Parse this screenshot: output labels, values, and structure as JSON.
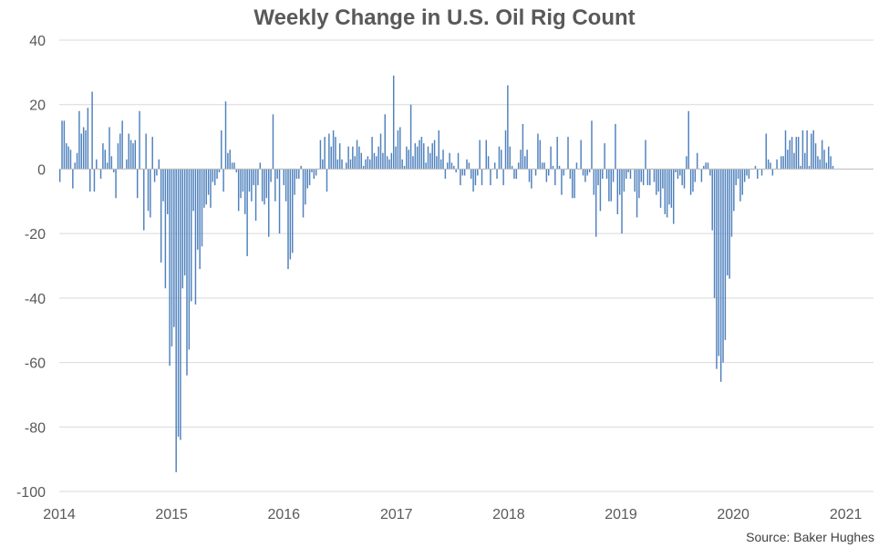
{
  "chart_data": {
    "type": "bar",
    "title": "Weekly Change in U.S. Oil Rig Count",
    "xlabel": "",
    "ylabel": "",
    "x_range": [
      "2014-01-01",
      "2021-04-01"
    ],
    "ylim": [
      -100,
      40
    ],
    "y_ticks": [
      40,
      20,
      0,
      -20,
      -40,
      -60,
      -80,
      -100
    ],
    "x_ticks": [
      "2014",
      "2015",
      "2016",
      "2017",
      "2018",
      "2019",
      "2020",
      "2021"
    ],
    "grid": "horizontal",
    "bar_color": "#4F81BD",
    "series": [
      {
        "start_date": "2014-01-03",
        "interval_days": 7,
        "values": [
          -4,
          15,
          15,
          8,
          7,
          6,
          -6,
          2,
          5,
          18,
          11,
          13,
          12,
          19,
          -7,
          24,
          -7,
          3,
          0,
          -3,
          8,
          6,
          2,
          13,
          4,
          -1,
          -9,
          8,
          11,
          15,
          0,
          3,
          11,
          9,
          8,
          9,
          -9,
          18,
          0,
          -19,
          11,
          -13,
          -15,
          10,
          -4,
          -2,
          3,
          -29,
          -10,
          -37,
          -14,
          -61,
          -55,
          -49,
          -94,
          -83,
          -84,
          -37,
          -33,
          -64,
          -56,
          -41,
          -13,
          -42,
          -25,
          -31,
          -24,
          -12,
          -11,
          -8,
          -12,
          -4,
          -5,
          -3,
          -1,
          12,
          -7,
          21,
          5,
          6,
          2,
          2,
          -1,
          -13,
          -9,
          -7,
          -14,
          -27,
          -7,
          -10,
          -5,
          -16,
          -5,
          2,
          -10,
          -11,
          -9,
          -21,
          -4,
          17,
          -10,
          -3,
          -20,
          0,
          -5,
          -10,
          -31,
          -28,
          -26,
          -8,
          -3,
          -3,
          1,
          -15,
          -11,
          -6,
          -5,
          -1,
          -3,
          -2,
          0,
          9,
          3,
          10,
          -7,
          11,
          7,
          12,
          10,
          3,
          8,
          3,
          0,
          2,
          7,
          3,
          7,
          4,
          9,
          7,
          5,
          1,
          3,
          4,
          3,
          10,
          5,
          4,
          7,
          11,
          5,
          17,
          4,
          3,
          5,
          29,
          7,
          12,
          13,
          3,
          1,
          7,
          6,
          20,
          4,
          8,
          7,
          9,
          10,
          8,
          2,
          7,
          5,
          8,
          9,
          4,
          12,
          3,
          6,
          -3,
          2,
          5,
          2,
          1,
          -1,
          5,
          -5,
          -2,
          -2,
          3,
          2,
          -3,
          -7,
          -5,
          -2,
          9,
          -5,
          0,
          9,
          4,
          -5,
          0,
          2,
          -3,
          7,
          6,
          -5,
          12,
          26,
          7,
          1,
          -3,
          -3,
          2,
          6,
          14,
          4,
          6,
          -4,
          -6,
          0,
          -2,
          11,
          9,
          2,
          2,
          -4,
          -2,
          7,
          1,
          -5,
          10,
          1,
          -8,
          -2,
          0,
          10,
          -3,
          -9,
          -9,
          2,
          0,
          9,
          -2,
          -4,
          -2,
          -1,
          15,
          -8,
          -21,
          -5,
          -13,
          -3,
          8,
          -3,
          -10,
          -10,
          -4,
          14,
          -14,
          -8,
          -20,
          -7,
          -3,
          -1,
          -3,
          0,
          -7,
          -15,
          -9,
          -4,
          -5,
          9,
          -5,
          -5,
          0,
          -4,
          -8,
          -7,
          -12,
          -6,
          -14,
          -15,
          -11,
          -12,
          -17,
          -1,
          -3,
          -2,
          -5,
          -6,
          4,
          18,
          -8,
          -7,
          -4,
          5,
          0,
          -4,
          1,
          2,
          2,
          -2,
          -19,
          -40,
          -62,
          -58,
          -66,
          -60,
          -53,
          -33,
          -34,
          -21,
          -13,
          -5,
          -3,
          -10,
          -8,
          -4,
          -2,
          -3,
          0,
          0,
          1,
          -3,
          0,
          -2,
          0,
          11,
          3,
          2,
          -2,
          0,
          3,
          0,
          4,
          4,
          12,
          6,
          9,
          10,
          5,
          10,
          10,
          1,
          12,
          5,
          12,
          1,
          11,
          12,
          8,
          4,
          3,
          9,
          6,
          2,
          7,
          4,
          1
        ]
      }
    ]
  },
  "source": "Source: Baker Hughes"
}
